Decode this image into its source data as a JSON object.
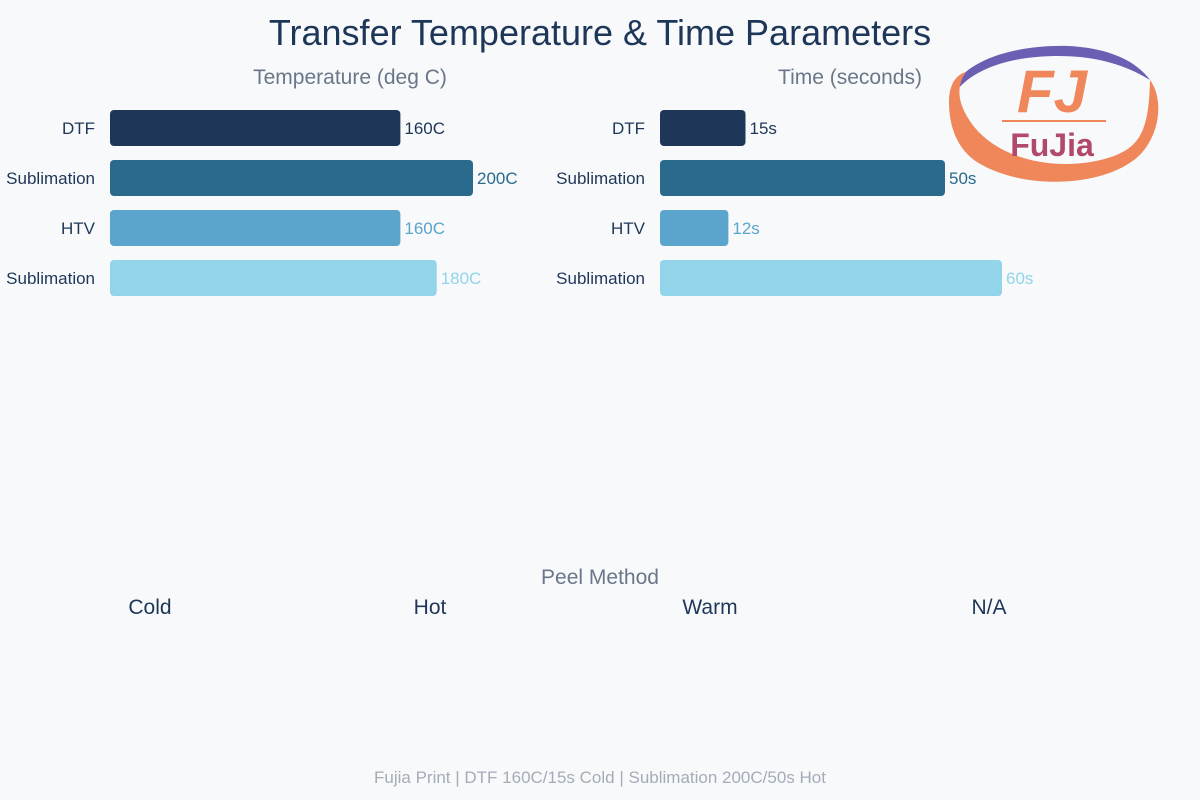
{
  "title": "Transfer Temperature & Time Parameters",
  "colors": [
    "#1e3658",
    "#2a6a8c",
    "#5ba4cc",
    "#92d4ea"
  ],
  "chart_data": [
    {
      "type": "bar",
      "orientation": "horizontal",
      "title": "Temperature (deg C)",
      "categories": [
        "DTF",
        "Sublimation",
        "HTV",
        "Sublimation"
      ],
      "values": [
        160,
        200,
        160,
        180
      ],
      "value_labels": [
        "160C",
        "200C",
        "160C",
        "180C"
      ],
      "xlim": [
        0,
        200
      ],
      "grid": false,
      "legend": "none"
    },
    {
      "type": "bar",
      "orientation": "horizontal",
      "title": "Time (seconds)",
      "categories": [
        "DTF",
        "Sublimation",
        "HTV",
        "Sublimation"
      ],
      "values": [
        15,
        50,
        12,
        60
      ],
      "value_labels": [
        "15s",
        "50s",
        "12s",
        "60s"
      ],
      "xlim": [
        0,
        60
      ],
      "grid": false,
      "legend": "none"
    }
  ],
  "peel": {
    "title": "Peel Method",
    "values": [
      "Cold",
      "Hot",
      "Warm",
      "N/A"
    ]
  },
  "logo": {
    "letters": "FJ",
    "name": "FuJia",
    "colors": {
      "ring_top": "#6a5fb3",
      "ring_bottom": "#f0875a",
      "letters": "#f0875a"
    }
  },
  "footer": "Fujia Print | DTF 160C/15s Cold | Sublimation 200C/50s Hot"
}
